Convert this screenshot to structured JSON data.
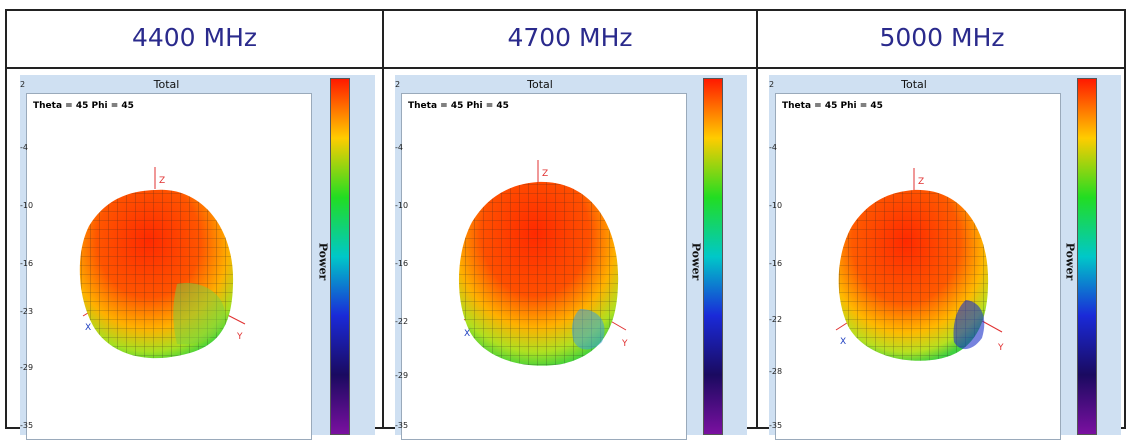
{
  "frequencies": [
    "4400 MHz",
    "4700 MHz",
    "5000 MHz"
  ],
  "panels": [
    {
      "title": "Total",
      "angles": "Theta = 45 Phi = 45",
      "colorbar_label": "Power",
      "ticks": [
        "2",
        "-4",
        "-10",
        "-16",
        "-23",
        "-29",
        "-35"
      ],
      "axes": {
        "z": "Z",
        "x": "X",
        "y": "Y"
      }
    },
    {
      "title": "Total",
      "angles": "Theta = 45 Phi = 45",
      "colorbar_label": "Power",
      "ticks": [
        "2",
        "-4",
        "-10",
        "-16",
        "-22",
        "-29",
        "-35"
      ],
      "axes": {
        "z": "Z",
        "x": "X",
        "y": "Y"
      }
    },
    {
      "title": "Total",
      "angles": "Theta = 45 Phi = 45",
      "colorbar_label": "Power",
      "ticks": [
        "2",
        "-4",
        "-10",
        "-16",
        "-22",
        "-28",
        "-35"
      ],
      "axes": {
        "z": "Z",
        "x": "X",
        "y": "Y"
      }
    }
  ],
  "colors": {
    "header_text": "#2a2a8c",
    "colorbar": [
      "#ff1a00",
      "#ffcc00",
      "#22dd22",
      "#00c8c8",
      "#1a2ad8",
      "#1a0a60",
      "#7a10a0"
    ],
    "axis_z": "#e03030",
    "axis_x": "#2040c0",
    "axis_y": "#e03030"
  }
}
